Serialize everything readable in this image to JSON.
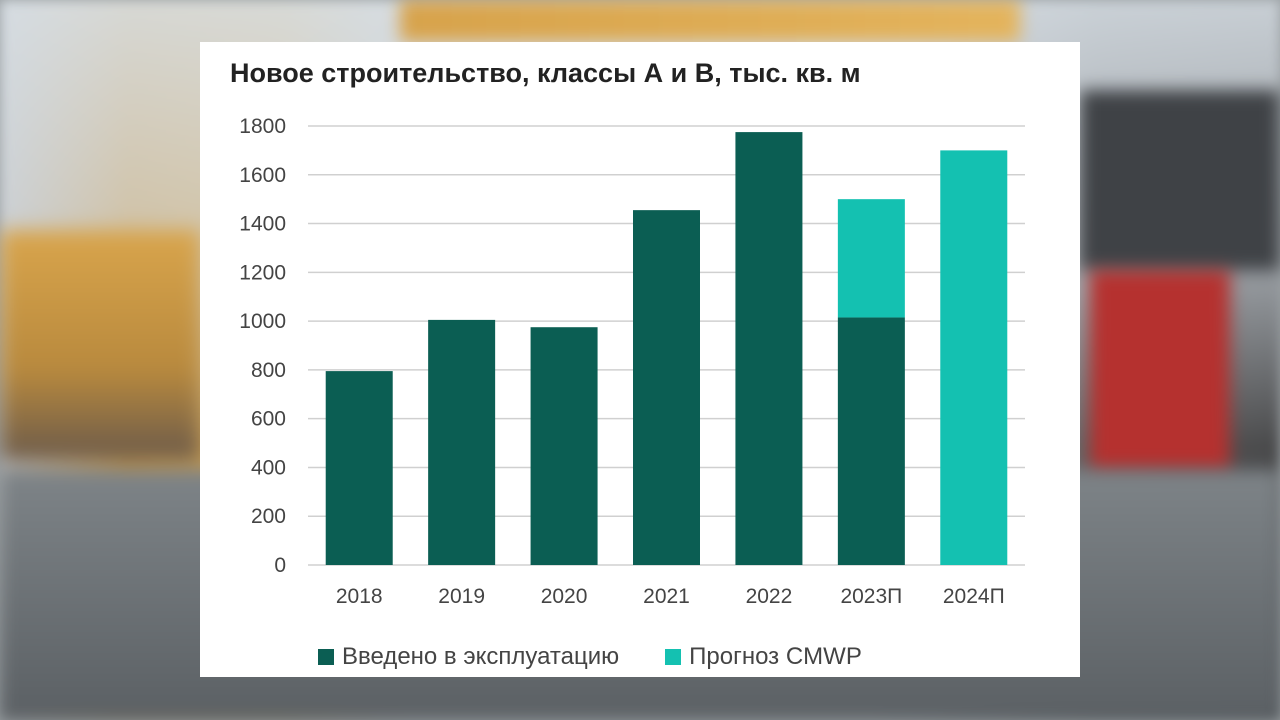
{
  "chart_data": {
    "type": "bar",
    "stacked": true,
    "title": "Новое строительство, классы А и В, тыс. кв. м",
    "xlabel": "",
    "ylabel": "",
    "categories": [
      "2018",
      "2019",
      "2020",
      "2021",
      "2022",
      "2023П",
      "2024П"
    ],
    "series": [
      {
        "name": "Введено в эксплуатацию",
        "color": "#0b5e53",
        "values": [
          795,
          1005,
          975,
          1455,
          1775,
          1015,
          0
        ]
      },
      {
        "name": "Прогноз CMWP",
        "color": "#14c1b1",
        "values": [
          0,
          0,
          0,
          0,
          0,
          485,
          1700
        ]
      }
    ],
    "ylim": [
      0,
      1800
    ],
    "yticks": [
      "0",
      "200",
      "400",
      "600",
      "800",
      "1000",
      "1200",
      "1400",
      "1600",
      "1800"
    ],
    "grid": true,
    "legend_position": "bottom"
  }
}
